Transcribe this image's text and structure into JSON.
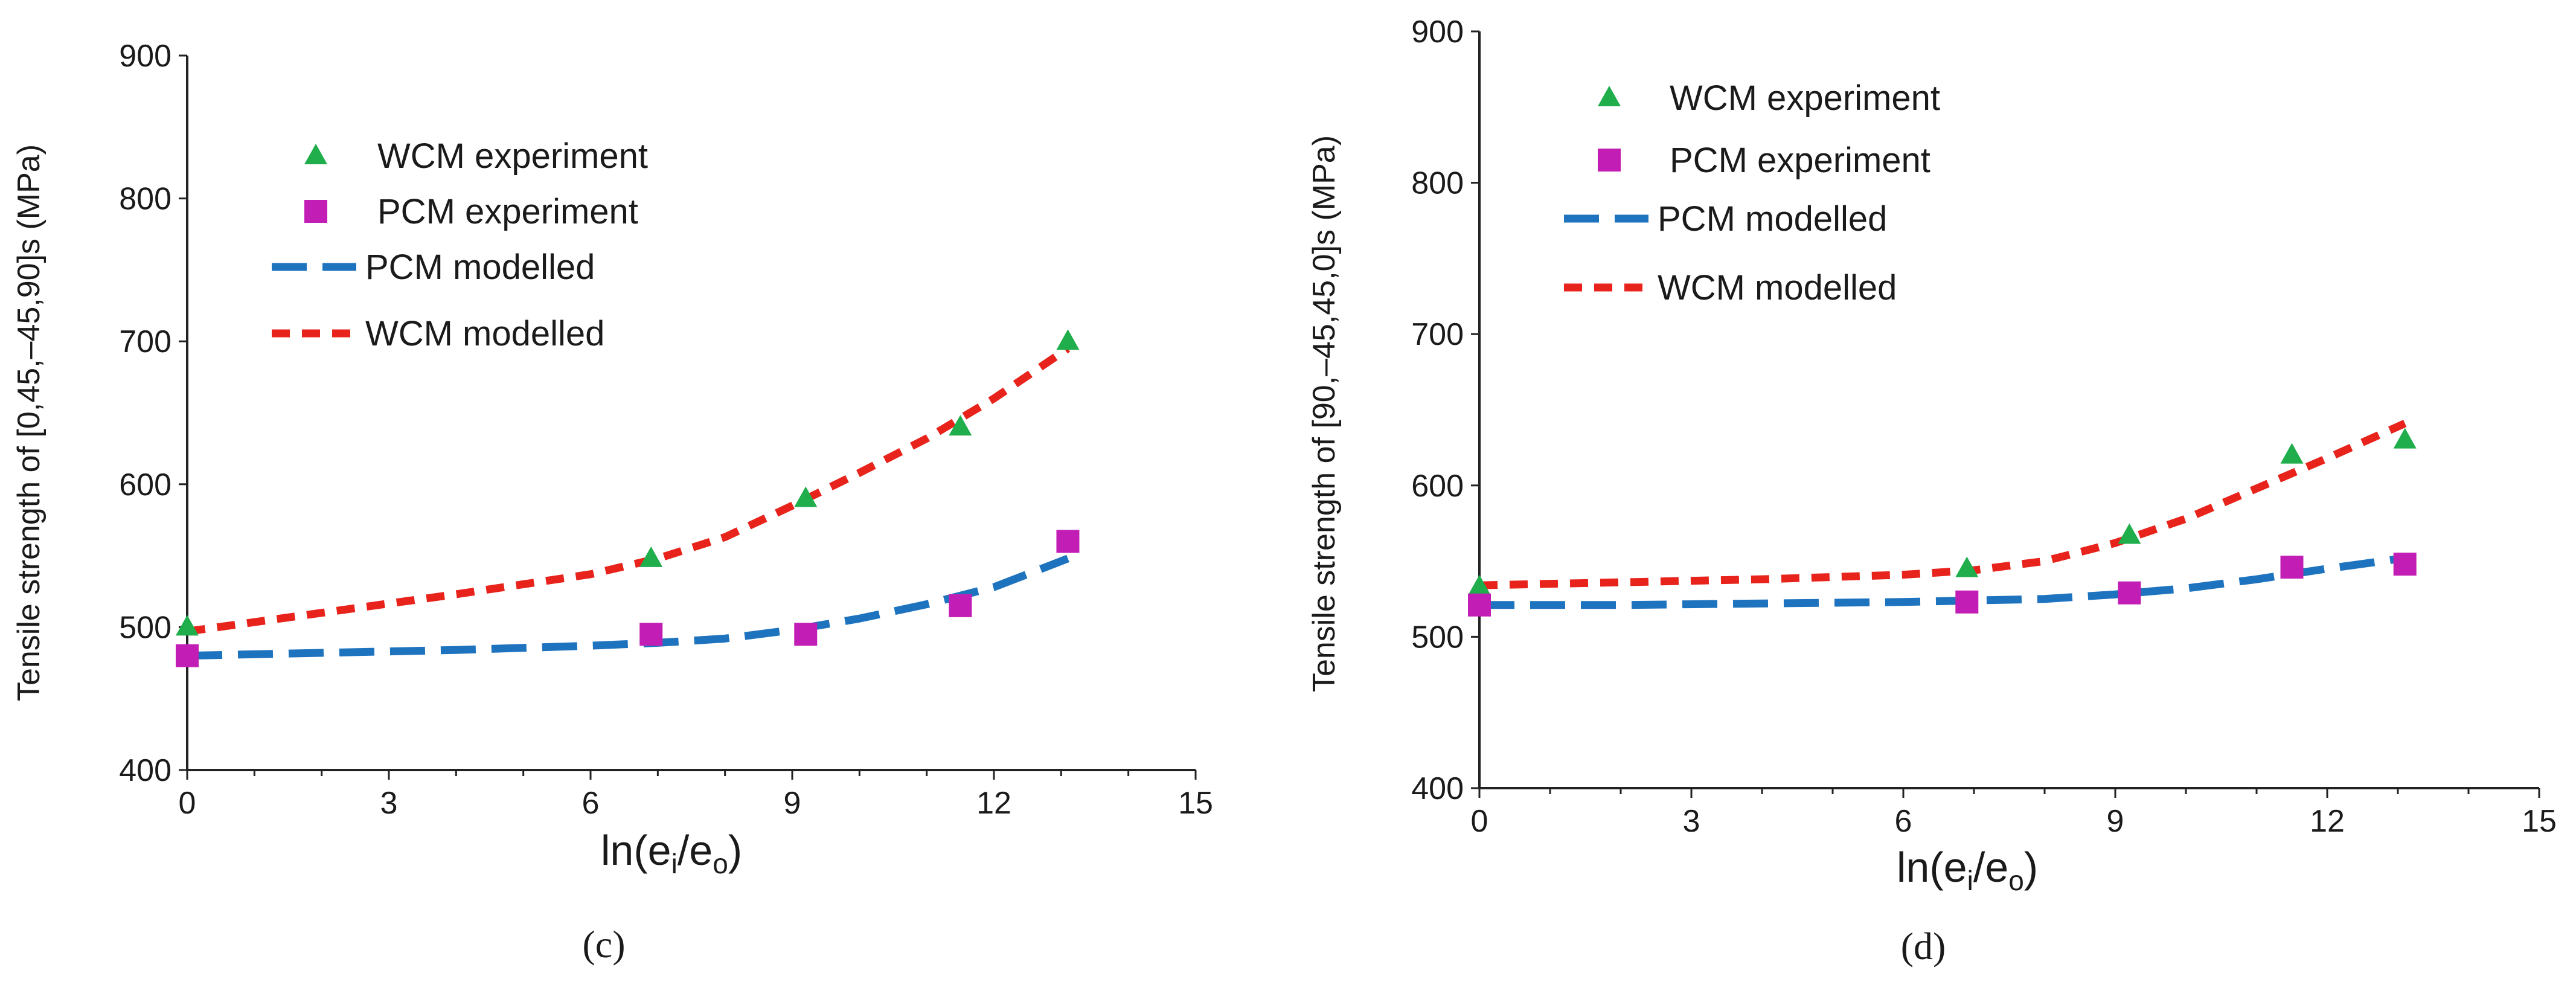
{
  "chart_data": [
    {
      "type": "scatter",
      "caption": "(c)",
      "xlabel": "ln(e",
      "xlabel_sub1": "i",
      "xlabel_mid": "/e",
      "xlabel_sub2": "o",
      "xlabel_end": ")",
      "ylabel": "Tensile strength of [0,45,–45,90]s (MPa)",
      "xlim": [
        0,
        15
      ],
      "ylim": [
        400,
        900
      ],
      "xticks": [
        "0",
        "3",
        "6",
        "9",
        "12",
        "15"
      ],
      "yticks": [
        "400",
        "500",
        "600",
        "700",
        "800",
        "900"
      ],
      "legend_position": "top-left",
      "series": [
        {
          "name": "WCM experiment",
          "kind": "marker",
          "marker": "triangle",
          "color": "#1fae4b",
          "x": [
            0,
            6.9,
            9.2,
            11.5,
            13.1
          ],
          "y": [
            500,
            548,
            590,
            640,
            700
          ]
        },
        {
          "name": "PCM experiment",
          "kind": "marker",
          "marker": "square",
          "color": "#c21eb5",
          "x": [
            0,
            6.9,
            9.2,
            11.5,
            13.1
          ],
          "y": [
            480,
            495,
            495,
            515,
            560
          ]
        },
        {
          "name": "PCM modelled",
          "kind": "line",
          "dash": "long",
          "color": "#1e73be",
          "x": [
            0,
            2,
            4,
            6,
            7,
            8,
            9,
            10,
            11,
            12,
            13.1
          ],
          "y": [
            480,
            482,
            484,
            487,
            489,
            492,
            498,
            506,
            516,
            528,
            548
          ]
        },
        {
          "name": "WCM modelled",
          "kind": "line",
          "dash": "short",
          "color": "#e8231b",
          "x": [
            0,
            2,
            4,
            6,
            7,
            8,
            9,
            10,
            11,
            12,
            13.1
          ],
          "y": [
            497,
            510,
            523,
            537,
            548,
            563,
            585,
            608,
            632,
            660,
            695
          ]
        }
      ]
    },
    {
      "type": "scatter",
      "caption": "(d)",
      "xlabel": "ln(e",
      "xlabel_sub1": "i",
      "xlabel_mid": "/e",
      "xlabel_sub2": "o",
      "xlabel_end": ")",
      "ylabel": "Tensile strength of [90,–45,45,0]s (MPa)",
      "xlim": [
        0,
        15
      ],
      "ylim": [
        400,
        900
      ],
      "xticks": [
        "0",
        "3",
        "6",
        "9",
        "12",
        "15"
      ],
      "yticks": [
        "400",
        "500",
        "600",
        "700",
        "800",
        "900"
      ],
      "legend_position": "top-left",
      "series": [
        {
          "name": "WCM experiment",
          "kind": "marker",
          "marker": "triangle",
          "color": "#1fae4b",
          "x": [
            0,
            6.9,
            9.2,
            11.5,
            13.1
          ],
          "y": [
            533,
            545,
            567,
            620,
            630
          ]
        },
        {
          "name": "PCM experiment",
          "kind": "marker",
          "marker": "square",
          "color": "#c21eb5",
          "x": [
            0,
            6.9,
            9.2,
            11.5,
            13.1
          ],
          "y": [
            521,
            523,
            529,
            546,
            548
          ]
        },
        {
          "name": "PCM modelled",
          "kind": "line",
          "dash": "long",
          "color": "#1e73be",
          "x": [
            0,
            2,
            4,
            6,
            7,
            8,
            9,
            10,
            11,
            12,
            13.1
          ],
          "y": [
            521,
            521,
            522,
            523,
            524,
            525,
            528,
            532,
            538,
            545,
            552
          ]
        },
        {
          "name": "WCM modelled",
          "kind": "line",
          "dash": "short",
          "color": "#e8231b",
          "x": [
            0,
            2,
            4,
            6,
            7,
            8,
            9,
            10,
            11,
            12,
            13.1
          ],
          "y": [
            534,
            536,
            538,
            541,
            544,
            550,
            562,
            578,
            598,
            618,
            641
          ]
        }
      ]
    }
  ]
}
